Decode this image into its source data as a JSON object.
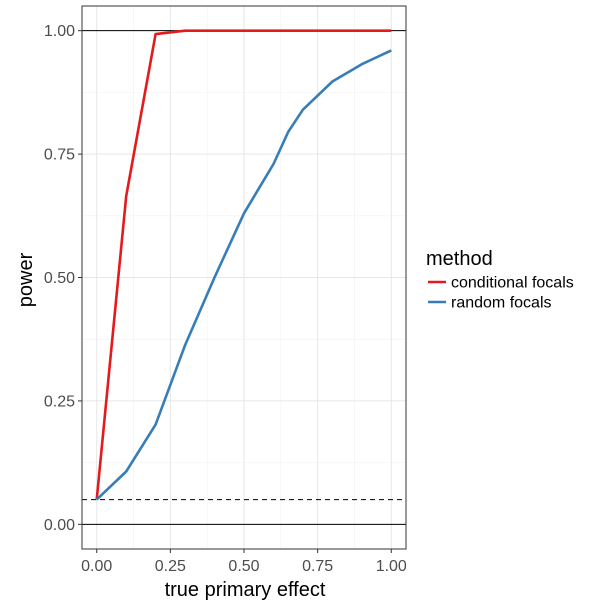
{
  "chart_data": {
    "type": "line",
    "xlabel": "true primary effect",
    "ylabel": "power",
    "xlim": [
      -0.05,
      1.05
    ],
    "ylim": [
      -0.05,
      1.05
    ],
    "x_ticks": [
      0,
      0.25,
      0.5,
      0.75,
      1
    ],
    "x_tick_labels": [
      "0.00",
      "0.25",
      "0.50",
      "0.75",
      "1.00"
    ],
    "y_ticks": [
      0,
      0.25,
      0.5,
      0.75,
      1
    ],
    "y_tick_labels": [
      "0.00",
      "0.25",
      "0.50",
      "0.75",
      "1.00"
    ],
    "grid": true,
    "hlines": [
      {
        "y": 0,
        "style": "solid"
      },
      {
        "y": 1,
        "style": "solid"
      },
      {
        "y": 0.05,
        "style": "dashed"
      }
    ],
    "legend": {
      "title": "method",
      "position": "right"
    },
    "series": [
      {
        "name": "conditional focals",
        "color": "#e41a1c",
        "x": [
          0,
          0.1,
          0.2,
          0.3,
          0.4,
          0.5,
          0.6,
          0.7,
          0.8,
          0.9,
          1.0
        ],
        "y": [
          0.05,
          0.665,
          0.993,
          1.0,
          1.0,
          1.0,
          1.0,
          1.0,
          1.0,
          1.0,
          1.0
        ]
      },
      {
        "name": "random focals",
        "color": "#377eb8",
        "x": [
          0,
          0.1,
          0.2,
          0.3,
          0.4,
          0.5,
          0.6,
          0.65,
          0.7,
          0.8,
          0.9,
          1.0
        ],
        "y": [
          0.05,
          0.107,
          0.202,
          0.363,
          0.5,
          0.63,
          0.73,
          0.795,
          0.84,
          0.897,
          0.932,
          0.96
        ]
      }
    ]
  }
}
